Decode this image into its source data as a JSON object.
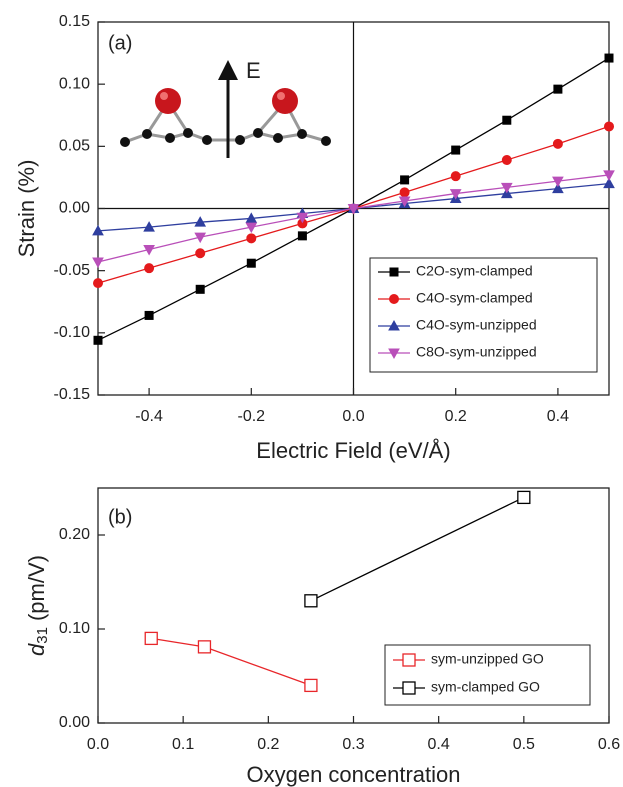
{
  "chart_data": [
    {
      "type": "line",
      "panel_label": "(a)",
      "field_label": "E",
      "xlabel": "Electric Field (eV/Å)",
      "ylabel": "Strain (%)",
      "x": [
        -0.5,
        -0.4,
        -0.3,
        -0.2,
        -0.1,
        0,
        0.1,
        0.2,
        0.3,
        0.4,
        0.5
      ],
      "series": [
        {
          "name": "C2O-sym-clamped",
          "color": "#000000",
          "marker": "square",
          "filled": true,
          "values": [
            -0.106,
            -0.086,
            -0.065,
            -0.044,
            -0.022,
            0,
            0.023,
            0.047,
            0.071,
            0.096,
            0.121
          ]
        },
        {
          "name": "C4O-sym-clamped",
          "color": "#e41a1c",
          "marker": "circle",
          "filled": true,
          "values": [
            -0.06,
            -0.048,
            -0.036,
            -0.024,
            -0.012,
            0,
            0.013,
            0.026,
            0.039,
            0.052,
            0.066
          ]
        },
        {
          "name": "C4O-sym-unzipped",
          "color": "#2f3f9f",
          "marker": "triangle-up",
          "filled": true,
          "values": [
            -0.018,
            -0.015,
            -0.011,
            -0.008,
            -0.004,
            0,
            0.004,
            0.008,
            0.012,
            0.016,
            0.02
          ]
        },
        {
          "name": "C8O-sym-unzipped",
          "color": "#b94fb9",
          "marker": "triangle-down",
          "filled": true,
          "values": [
            -0.043,
            -0.033,
            -0.023,
            -0.015,
            -0.007,
            0,
            0.006,
            0.012,
            0.017,
            0.022,
            0.027
          ]
        }
      ],
      "xlim": [
        -0.5,
        0.5
      ],
      "xticks": [
        -0.4,
        -0.2,
        {
          "value": 0,
          "label": "0.0"
        },
        0.2,
        0.4
      ],
      "ylim": [
        -0.15,
        0.15
      ],
      "yticks": [
        -0.15,
        {
          "value": -0.1,
          "label": "-0.10"
        },
        -0.05,
        {
          "value": 0,
          "label": "0.00"
        },
        0.05,
        {
          "value": 0.1,
          "label": "0.10"
        },
        0.15
      ],
      "zero_lines": true,
      "grid": false,
      "legend": "lower right"
    },
    {
      "type": "line",
      "panel_label": "(b)",
      "xlabel": "Oxygen concentration",
      "ylabel": {
        "symbol": "d",
        "subscript": "31",
        "unit": "(pm/V)"
      },
      "series": [
        {
          "name": "sym-unzipped GO",
          "color": "#e8262a",
          "marker": "square",
          "filled": false,
          "x": [
            0.0625,
            0.125,
            0.25
          ],
          "values": [
            0.09,
            0.081,
            0.04
          ]
        },
        {
          "name": "sym-clamped GO",
          "color": "#000000",
          "marker": "square",
          "filled": false,
          "x": [
            0.25,
            0.5
          ],
          "values": [
            0.13,
            0.24
          ]
        }
      ],
      "xlim": [
        0,
        0.6
      ],
      "xticks": [
        {
          "value": 0,
          "label": "0.0"
        },
        0.1,
        0.2,
        0.3,
        0.4,
        0.5,
        0.6
      ],
      "ylim": [
        0,
        0.25
      ],
      "yticks": [
        {
          "value": 0,
          "label": "0.00"
        },
        {
          "value": 0.1,
          "label": "0.10"
        },
        {
          "value": 0.2,
          "label": "0.20"
        }
      ],
      "zero_lines": false,
      "grid": false,
      "legend": "lower right"
    }
  ]
}
